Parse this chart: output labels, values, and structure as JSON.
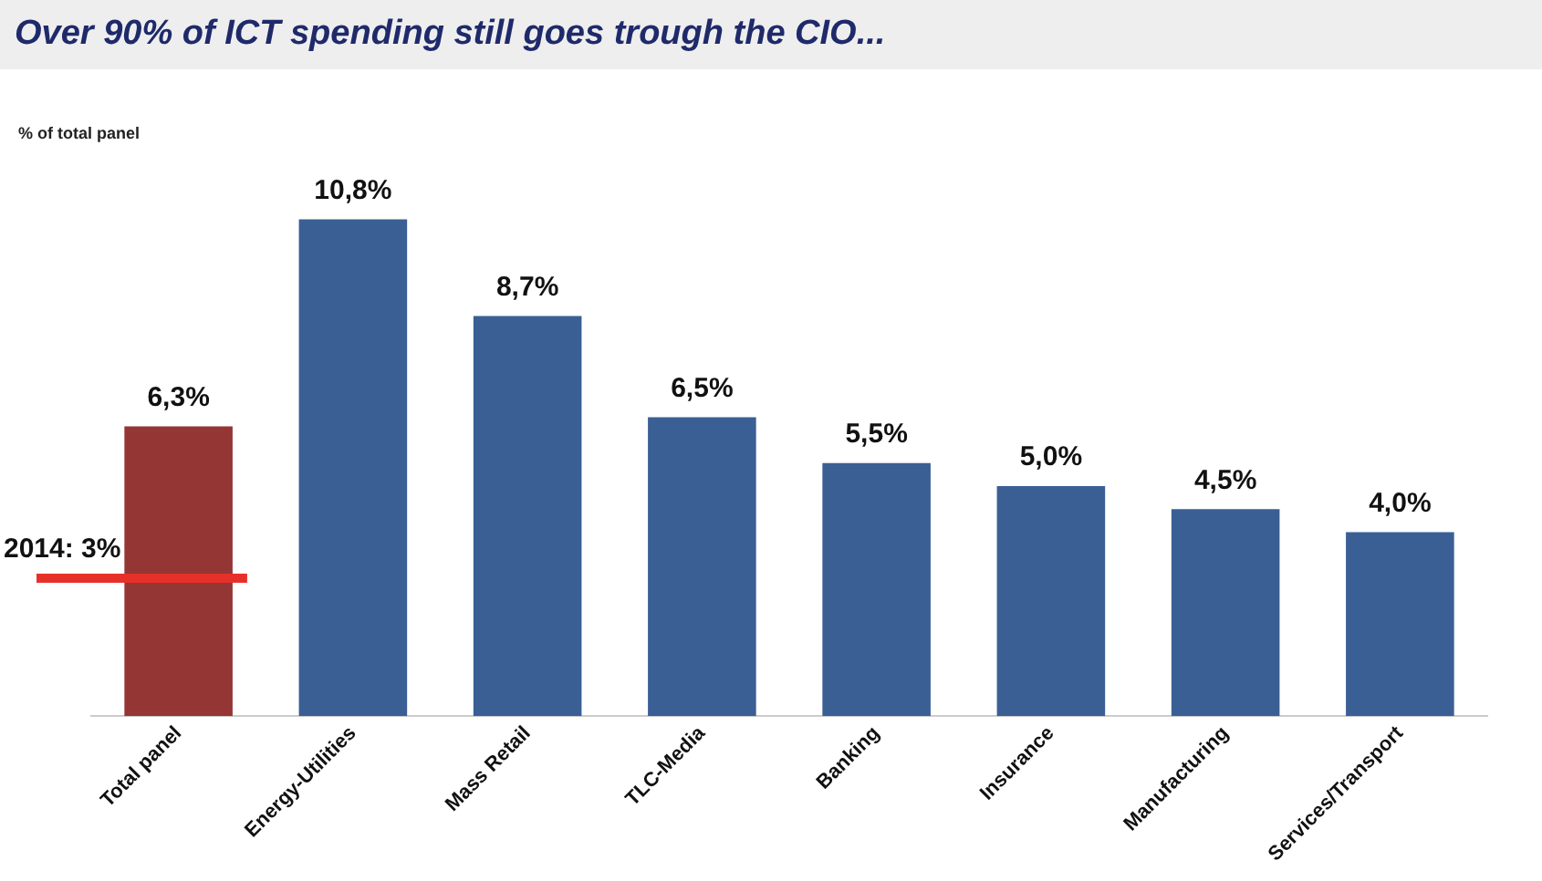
{
  "chart_data": {
    "type": "bar",
    "title": "Over 90% of ICT spending still goes trough the CIO...",
    "ylabel": "% of total panel",
    "categories": [
      "Total panel",
      "Energy-Utilities",
      "Mass Retail",
      "TLC-Media",
      "Banking",
      "Insurance",
      "Manufacturing",
      "Services/Transport"
    ],
    "values": [
      6.3,
      10.8,
      8.7,
      6.5,
      5.5,
      5.0,
      4.5,
      4.0
    ],
    "value_labels": [
      "6,3%",
      "10,8%",
      "8,7%",
      "6,5%",
      "5,5%",
      "5,0%",
      "4,5%",
      "4,0%"
    ],
    "colors": [
      "#943634",
      "#3a5f95",
      "#3a5f95",
      "#3a5f95",
      "#3a5f95",
      "#3a5f95",
      "#3a5f95",
      "#3a5f95"
    ],
    "ref_lines": [
      {
        "axis": "y",
        "value": 3,
        "label": "2014: 3%",
        "color": "#e8302a"
      }
    ],
    "grid": false,
    "legend": false
  }
}
